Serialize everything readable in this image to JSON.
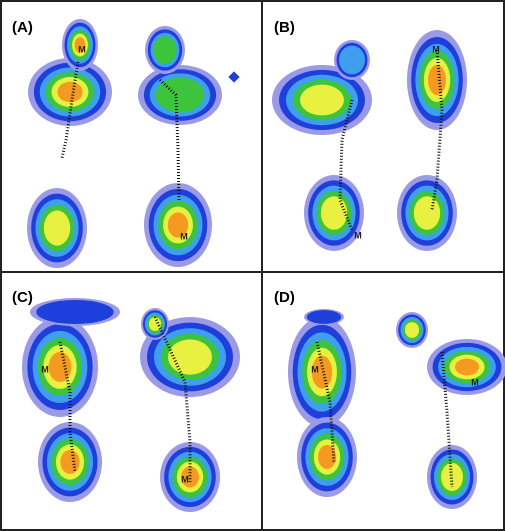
{
  "panels": [
    {
      "label": "(A)",
      "markers": [
        "M",
        "M"
      ]
    },
    {
      "label": "(B)",
      "markers": [
        "M",
        "M"
      ]
    },
    {
      "label": "(C)",
      "markers": [
        "M",
        "M"
      ]
    },
    {
      "label": "(D)",
      "markers": [
        "M",
        "M"
      ]
    }
  ]
}
